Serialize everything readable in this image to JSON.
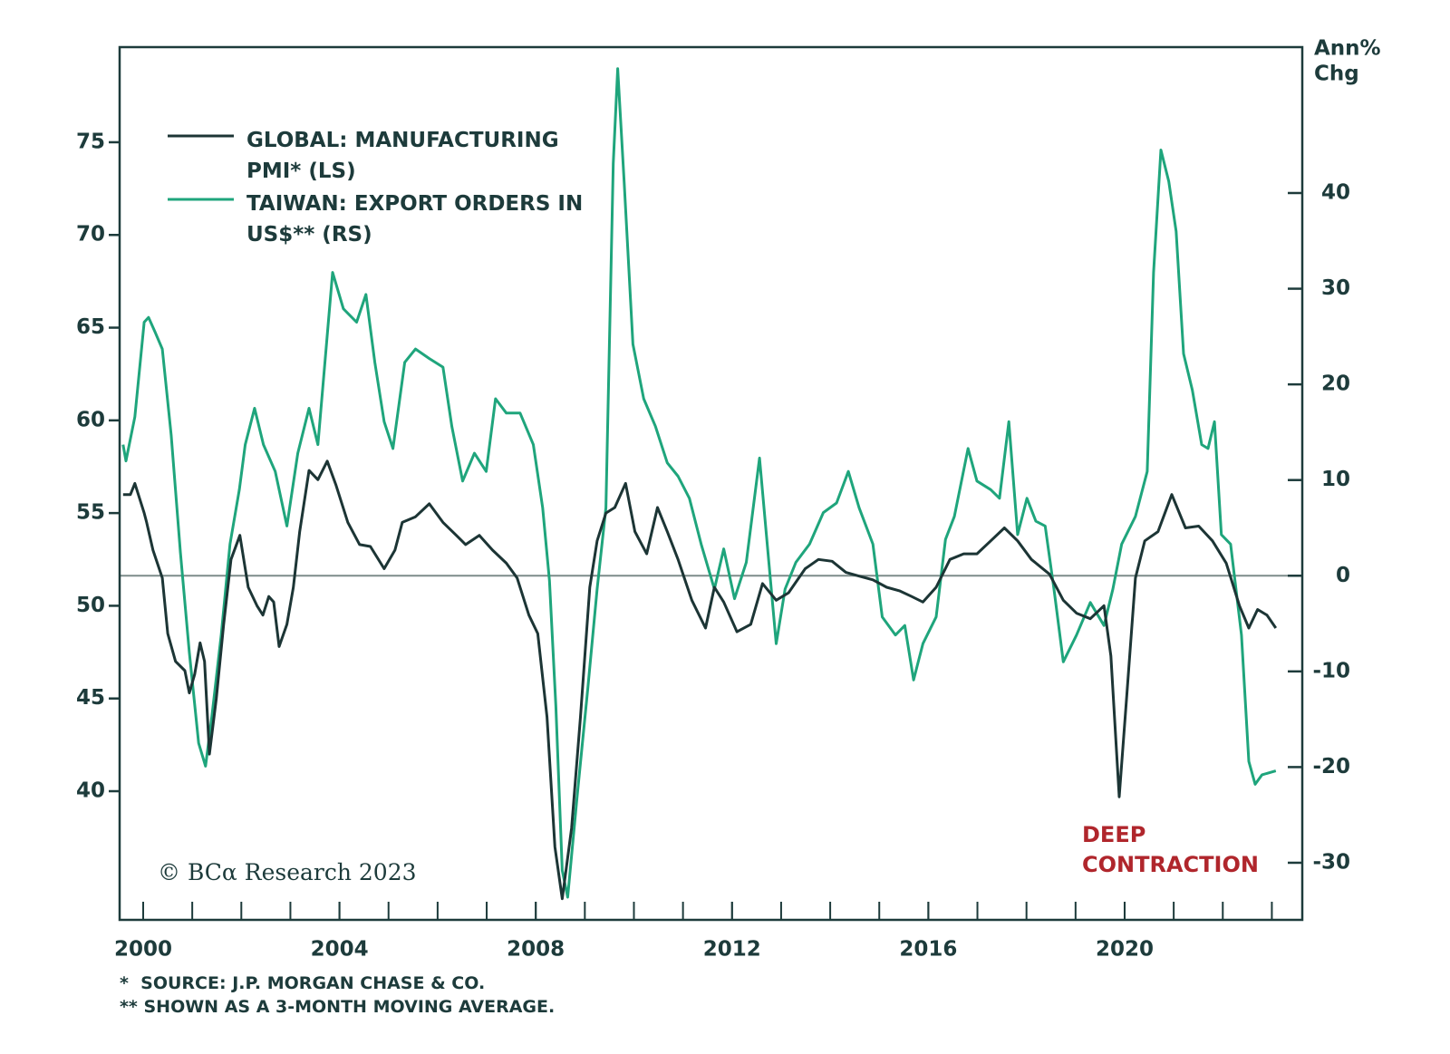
{
  "chart_data": {
    "type": "line",
    "y2label_lines": [
      "Ann%",
      "Chg"
    ],
    "annotation": "DEEP CONTRACTION",
    "annotation_color": "#b0262c",
    "copyright": "© BCα Research 2023",
    "footnotes": [
      "*  SOURCE: J.P. MORGAN CHASE & CO.",
      "** SHOWN AS A 3-MONTH MOVING AVERAGE."
    ],
    "xlim": [
      1999.52,
      2023.62
    ],
    "xticks": [
      2000,
      2004,
      2008,
      2012,
      2016,
      2020
    ],
    "ylim": [
      33.06,
      80.13
    ],
    "yticks": [
      40,
      45,
      50,
      55,
      60,
      65,
      70,
      75
    ],
    "y2lim": [
      -35.97,
      55.25
    ],
    "y2ticks": [
      -30,
      -20,
      -10,
      0,
      10,
      20,
      30,
      40
    ],
    "zero_line": true,
    "series": [
      {
        "name": "GLOBAL: MANUFACTURING PMI* (LS)",
        "color": "#1c3535",
        "axis": "y",
        "x": [
          1999.59,
          1999.74,
          1999.83,
          2000.02,
          2000.07,
          2000.2,
          2000.39,
          2000.5,
          2000.66,
          2000.85,
          2000.94,
          2001.05,
          2001.16,
          2001.25,
          2001.35,
          2001.49,
          2001.64,
          2001.79,
          2001.97,
          2002.14,
          2002.32,
          2002.44,
          2002.56,
          2002.66,
          2002.77,
          2002.93,
          2003.06,
          2003.19,
          2003.38,
          2003.56,
          2003.75,
          2003.93,
          2004.17,
          2004.41,
          2004.63,
          2004.91,
          2005.13,
          2005.28,
          2005.55,
          2005.83,
          2006.11,
          2006.38,
          2006.57,
          2006.85,
          2007.12,
          2007.4,
          2007.62,
          2007.86,
          2008.04,
          2008.23,
          2008.39,
          2008.54,
          2008.73,
          2008.91,
          2009.1,
          2009.25,
          2009.43,
          2009.61,
          2009.83,
          2010.02,
          2010.26,
          2010.48,
          2010.68,
          2010.9,
          2011.18,
          2011.46,
          2011.64,
          2011.83,
          2012.1,
          2012.38,
          2012.62,
          2012.9,
          2013.15,
          2013.49,
          2013.76,
          2014.04,
          2014.32,
          2014.59,
          2014.87,
          2015.15,
          2015.42,
          2015.66,
          2015.89,
          2016.16,
          2016.44,
          2016.72,
          2016.99,
          2017.27,
          2017.55,
          2017.82,
          2018.1,
          2018.47,
          2018.75,
          2019.02,
          2019.3,
          2019.58,
          2019.72,
          2019.89,
          2020.04,
          2020.22,
          2020.41,
          2020.68,
          2020.96,
          2021.24,
          2021.51,
          2021.79,
          2022.07,
          2022.34,
          2022.53,
          2022.71,
          2022.9,
          2023.08
        ],
        "values": [
          56,
          56,
          56.6,
          55,
          54.5,
          53,
          51.5,
          48.5,
          47,
          46.5,
          45.3,
          46.3,
          48,
          47,
          42,
          45,
          49,
          52.5,
          53.8,
          51,
          50,
          49.5,
          50.5,
          50.2,
          47.8,
          49,
          51,
          54,
          57.3,
          56.8,
          57.8,
          56.5,
          54.5,
          53.3,
          53.2,
          52,
          53,
          54.5,
          54.8,
          55.5,
          54.5,
          53.8,
          53.3,
          53.8,
          53,
          52.3,
          51.5,
          49.5,
          48.5,
          44,
          37,
          34.2,
          38,
          44,
          51,
          53.5,
          55,
          55.3,
          56.6,
          54,
          52.8,
          55.3,
          54,
          52.5,
          50.3,
          48.8,
          51,
          50.2,
          48.6,
          49,
          51.2,
          50.3,
          50.7,
          52,
          52.5,
          52.4,
          51.8,
          51.6,
          51.4,
          51,
          50.8,
          50.5,
          50.2,
          51,
          52.5,
          52.8,
          52.8,
          53.5,
          54.2,
          53.5,
          52.5,
          51.7,
          50.3,
          49.6,
          49.3,
          50,
          47.3,
          39.7,
          45,
          51.5,
          53.5,
          54,
          56,
          54.2,
          54.3,
          53.5,
          52.3,
          50,
          48.8,
          49.8,
          49.5,
          48.8
        ]
      },
      {
        "name": "TAIWAN: EXPORT ORDERS IN US$** (RS)",
        "color": "#1fa57c",
        "axis": "y2",
        "x": [
          1999.59,
          1999.65,
          1999.83,
          2000.02,
          2000.11,
          2000.24,
          2000.39,
          2000.57,
          2000.76,
          2000.94,
          2001.13,
          2001.27,
          2001.4,
          2001.59,
          2001.77,
          2001.96,
          2002.08,
          2002.27,
          2002.45,
          2002.69,
          2002.93,
          2003.15,
          2003.38,
          2003.56,
          2003.86,
          2004.08,
          2004.35,
          2004.54,
          2004.72,
          2004.91,
          2005.09,
          2005.33,
          2005.55,
          2005.83,
          2006.11,
          2006.29,
          2006.51,
          2006.75,
          2006.99,
          2007.18,
          2007.4,
          2007.68,
          2007.95,
          2008.14,
          2008.28,
          2008.41,
          2008.54,
          2008.65,
          2008.84,
          2009.06,
          2009.25,
          2009.43,
          2009.58,
          2009.67,
          2009.8,
          2009.98,
          2010.2,
          2010.44,
          2010.68,
          2010.9,
          2011.13,
          2011.37,
          2011.64,
          2011.83,
          2012.05,
          2012.29,
          2012.56,
          2012.75,
          2012.9,
          2013.08,
          2013.3,
          2013.58,
          2013.86,
          2014.13,
          2014.37,
          2014.59,
          2014.87,
          2015.06,
          2015.33,
          2015.52,
          2015.7,
          2015.89,
          2016.16,
          2016.35,
          2016.53,
          2016.81,
          2016.99,
          2017.27,
          2017.45,
          2017.64,
          2017.82,
          2018.01,
          2018.19,
          2018.38,
          2018.56,
          2018.75,
          2019.02,
          2019.3,
          2019.58,
          2019.76,
          2019.94,
          2020.22,
          2020.46,
          2020.59,
          2020.74,
          2020.9,
          2021.05,
          2021.2,
          2021.38,
          2021.57,
          2021.7,
          2021.83,
          2021.97,
          2022.16,
          2022.38,
          2022.53,
          2022.66,
          2022.8,
          2023.08
        ],
        "values": [
          13.7,
          12,
          16.6,
          26.5,
          27,
          25.5,
          23.7,
          14.7,
          2.4,
          -8,
          -17.5,
          -19.9,
          -14.7,
          -6.2,
          3.3,
          9,
          13.7,
          17.5,
          13.7,
          10.9,
          5.2,
          12.8,
          17.5,
          13.7,
          31.7,
          27.9,
          26.5,
          29.4,
          22.3,
          16.1,
          13.3,
          22.3,
          23.7,
          22.7,
          21.8,
          15.6,
          9.9,
          12.8,
          10.9,
          18.5,
          17,
          17,
          13.7,
          7.1,
          -0.5,
          -13.7,
          -30.8,
          -33.6,
          -23.2,
          -11.8,
          -1.4,
          7.1,
          43.1,
          53,
          41.2,
          24.2,
          18.5,
          15.6,
          11.8,
          10.4,
          8.1,
          3.3,
          -1.4,
          2.8,
          -2.4,
          1.4,
          12.3,
          1.4,
          -7.1,
          -1.4,
          1.4,
          3.3,
          6.6,
          7.6,
          10.9,
          7.1,
          3.3,
          -4.3,
          -6.2,
          -5.2,
          -10.9,
          -7.1,
          -4.3,
          3.8,
          6.2,
          13.3,
          9.9,
          9,
          8.1,
          16.1,
          4.3,
          8.1,
          5.7,
          5.2,
          -1.4,
          -9,
          -6.2,
          -2.8,
          -5.2,
          -1.4,
          3.3,
          6.2,
          10.9,
          31.7,
          44.5,
          41.2,
          36,
          23.2,
          19.4,
          13.7,
          13.3,
          16.1,
          4.3,
          3.3,
          -6.2,
          -19.4,
          -21.8,
          -20.8,
          -20.4
        ]
      }
    ]
  }
}
